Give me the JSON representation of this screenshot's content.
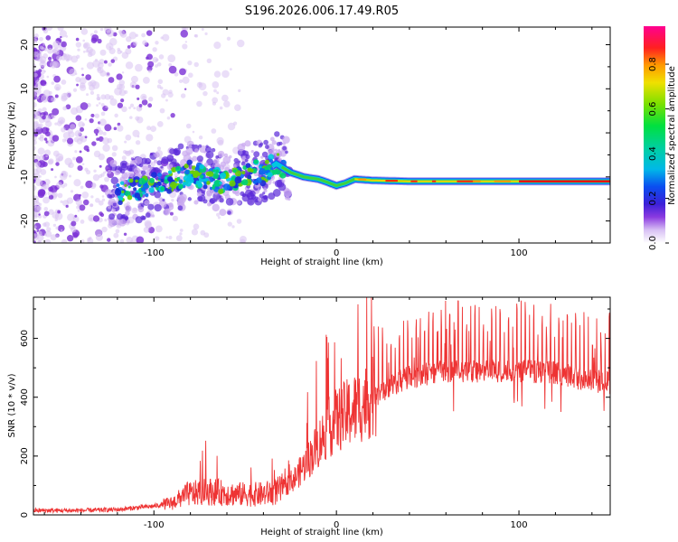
{
  "title": "S196.2026.006.17.49.R05",
  "colors": {
    "snr_line": "#ee3333",
    "scatter_light": "#d9c2f2",
    "scatter_dark": "#7a2fd6",
    "axis": "#000000"
  },
  "chart_data": [
    {
      "type": "heatmap",
      "name": "spectrogram",
      "xlabel": "Height of straight line (km)",
      "ylabel": "Frequency (Hz)",
      "xlim": [
        -166,
        150
      ],
      "ylim": [
        -25,
        24
      ],
      "x_ticks": [
        -100,
        0,
        100
      ],
      "x_tick_labels": [
        "-100",
        "0",
        "100"
      ],
      "y_ticks": [
        -20,
        -10,
        0,
        10,
        20
      ],
      "y_tick_labels": [
        "-20",
        "-10",
        "0",
        "10",
        "20"
      ],
      "colorbar": {
        "label": "Normalized spectral amplitude",
        "range": [
          0.0,
          0.97
        ],
        "ticks": [
          0.0,
          0.2,
          0.4,
          0.6,
          0.8
        ],
        "tick_labels": [
          "0.0",
          "0.2",
          "0.4",
          "0.6",
          "0.8"
        ]
      },
      "ridge": {
        "x": [
          -120,
          -110,
          -100,
          -90,
          -80,
          -70,
          -60,
          -50,
          -40,
          -33,
          -25,
          -18,
          -10,
          -5,
          0,
          5,
          10,
          20,
          40,
          60,
          80,
          100,
          120,
          150
        ],
        "y": [
          -13.5,
          -13,
          -12,
          -11,
          -9,
          -10,
          -11.5,
          -9,
          -9,
          -7,
          -9,
          -10,
          -10.5,
          -11.2,
          -12,
          -11.4,
          -10.5,
          -10.8,
          -11,
          -11,
          -11,
          -11,
          -11,
          -11
        ]
      }
    },
    {
      "type": "line",
      "name": "snr",
      "xlabel": "Height of straight line (km)",
      "ylabel": "SNR (10 * v/v)",
      "xlim": [
        -166,
        150
      ],
      "ylim": [
        0,
        740
      ],
      "x_ticks": [
        -100,
        0,
        100
      ],
      "x_tick_labels": [
        "-100",
        "0",
        "100"
      ],
      "y_ticks": [
        0,
        200,
        400,
        600
      ],
      "y_tick_labels": [
        "0",
        "200",
        "400",
        "600"
      ],
      "envelope": {
        "x": [
          -166,
          -140,
          -120,
          -100,
          -90,
          -82,
          -70,
          -55,
          -40,
          -30,
          -22,
          -15,
          -10,
          -5,
          0,
          10,
          20,
          30,
          40,
          60,
          80,
          100,
          120,
          135,
          150
        ],
        "y": [
          15,
          15,
          18,
          30,
          40,
          70,
          80,
          70,
          70,
          85,
          130,
          190,
          240,
          290,
          320,
          360,
          400,
          440,
          470,
          490,
          490,
          490,
          485,
          460,
          450
        ]
      }
    }
  ]
}
